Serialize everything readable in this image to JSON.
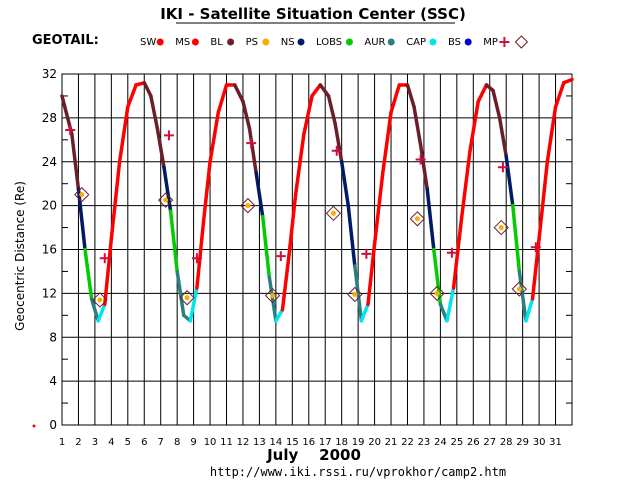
{
  "header": {
    "title": "IKI - Satellite Situation Center (SSC)",
    "mission": "GEOTAIL:"
  },
  "legend": [
    {
      "label": "SW",
      "color": "#ff0000",
      "symbol": "dot"
    },
    {
      "label": "MS",
      "color": "#ff0000",
      "symbol": "dot"
    },
    {
      "label": "BL",
      "color": "#6b1f2a",
      "symbol": "dot"
    },
    {
      "label": "PS",
      "color": "#ffaa00",
      "symbol": "dot"
    },
    {
      "label": "NS",
      "color": "#001a66",
      "symbol": "dot"
    },
    {
      "label": "LOBS",
      "color": "#00cc00",
      "symbol": "dot"
    },
    {
      "label": "AUR",
      "color": "#2a8080",
      "symbol": "dot"
    },
    {
      "label": "CAP",
      "color": "#00e5ee",
      "symbol": "dot"
    },
    {
      "label": "BS",
      "color": "#0000dd",
      "symbol": "dot"
    },
    {
      "label": "MP",
      "color": "#d0103a",
      "symbol": "cross"
    },
    {
      "label": "",
      "color": "#6b1f2a",
      "symbol": "diamond"
    }
  ],
  "footer": {
    "url": "http://www.iki.rssi.ru/vprokhor/camp2.htm"
  },
  "chart_data": {
    "type": "line",
    "xlabel": "July    2000",
    "ylabel": "Geocentric  Distance  (Re)",
    "xlim": [
      1,
      32
    ],
    "ylim": [
      0,
      32
    ],
    "x_ticks": [
      "1",
      "2",
      "3",
      "4",
      "5",
      "6",
      "7",
      "8",
      "9",
      "10",
      "11",
      "12",
      "13",
      "14",
      "15",
      "16",
      "17",
      "18",
      "19",
      "20",
      "21",
      "22",
      "23",
      "24",
      "25",
      "26",
      "27",
      "28",
      "29",
      "30",
      "31"
    ],
    "y_ticks": [
      0,
      4,
      8,
      12,
      16,
      20,
      24,
      28,
      32
    ],
    "grid": true,
    "series": [
      {
        "name": "Geocentric distance",
        "x": [
          1.0,
          1.6,
          2.0,
          2.4,
          2.8,
          3.2,
          3.6,
          4.0,
          4.5,
          5.0,
          5.5,
          6.0,
          6.4,
          6.8,
          7.2,
          7.6,
          8.0,
          8.4,
          8.8,
          9.2,
          9.6,
          10.0,
          10.5,
          11.0,
          11.5,
          12.0,
          12.4,
          12.8,
          13.2,
          13.6,
          14.0,
          14.4,
          14.8,
          15.2,
          15.7,
          16.2,
          16.7,
          17.2,
          17.6,
          18.0,
          18.4,
          18.8,
          19.2,
          19.6,
          20.0,
          20.5,
          21.0,
          21.5,
          22.0,
          22.4,
          22.8,
          23.2,
          23.6,
          24.0,
          24.4,
          24.8,
          25.3,
          25.8,
          26.3,
          26.8,
          27.2,
          27.6,
          28.0,
          28.4,
          28.8,
          29.2,
          29.6,
          30.0,
          30.5,
          31.0,
          31.5,
          32.0
        ],
        "y": [
          30.0,
          26.5,
          21.5,
          16.0,
          11.5,
          9.5,
          11.0,
          17.0,
          24.0,
          29.0,
          31.0,
          31.2,
          30.0,
          27.0,
          23.5,
          19.5,
          14.0,
          10.0,
          9.5,
          12.5,
          18.5,
          24.0,
          28.5,
          31.0,
          31.0,
          29.5,
          27.0,
          23.0,
          19.0,
          13.5,
          9.5,
          10.5,
          15.5,
          21.0,
          26.5,
          30.0,
          31.0,
          30.0,
          27.5,
          24.0,
          20.0,
          14.5,
          9.5,
          11.0,
          16.5,
          23.0,
          28.5,
          31.0,
          31.0,
          29.0,
          25.5,
          21.5,
          16.0,
          11.0,
          9.5,
          12.5,
          19.0,
          25.0,
          29.5,
          31.0,
          30.5,
          28.0,
          24.5,
          20.0,
          14.0,
          9.5,
          11.5,
          17.0,
          24.0,
          29.0,
          31.2,
          31.5
        ]
      },
      {
        "name": "MP",
        "x": [
          1.5,
          3.6,
          7.5,
          9.2,
          12.5,
          14.3,
          17.7,
          19.5,
          22.8,
          24.7,
          27.8,
          29.8
        ],
        "y": [
          26.9,
          15.2,
          26.4,
          15.2,
          25.7,
          15.4,
          25.0,
          15.6,
          24.2,
          15.7,
          23.5,
          16.2
        ]
      },
      {
        "name": "diamond",
        "x": [
          2.2,
          3.3,
          7.3,
          8.6,
          12.3,
          13.8,
          17.5,
          18.8,
          22.6,
          23.8,
          27.7,
          28.8
        ],
        "y": [
          21.0,
          11.4,
          20.5,
          11.6,
          20.0,
          11.8,
          19.3,
          11.9,
          18.8,
          12.0,
          18.0,
          12.4
        ]
      }
    ]
  }
}
